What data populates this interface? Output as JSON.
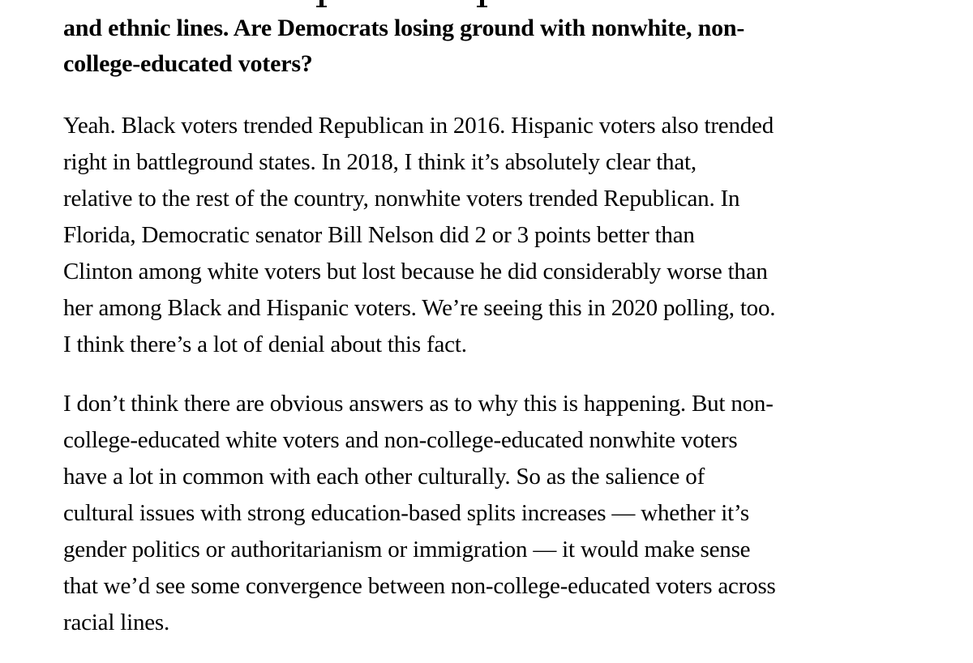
{
  "article": {
    "question_heading_lines": [
      "and ethnic lines. Are Democrats losing ground with nonwhite, non-",
      "college-educated voters?"
    ],
    "answer_paragraph_1_lines": [
      "Yeah. Black voters trended Republican in 2016. Hispanic voters also trended",
      "right in battleground states. In 2018, I think it’s absolutely clear that,",
      "relative to the rest of the country, nonwhite voters trended Republican. In",
      "Florida, Democratic senator Bill Nelson did 2 or 3 points better than",
      "Clinton among white voters but lost because he did considerably worse than",
      "her among Black and Hispanic voters. We’re seeing this in 2020 polling, too.",
      "I think there’s a lot of denial about this fact."
    ],
    "answer_paragraph_2_lines": [
      "I don’t think there are obvious answers as to why this is happening. But non-",
      "college-educated white voters and non-college-educated nonwhite voters",
      "have a lot in common with each other culturally. So as the salience of",
      "cultural issues with strong education-based splits increases — whether it’s",
      "gender politics or authoritarianism or immigration — it would make sense",
      "that we’d see some convergence between non-college-educated voters across",
      "racial lines."
    ],
    "colors": {
      "background": "#ffffff",
      "text": "#000000"
    }
  }
}
